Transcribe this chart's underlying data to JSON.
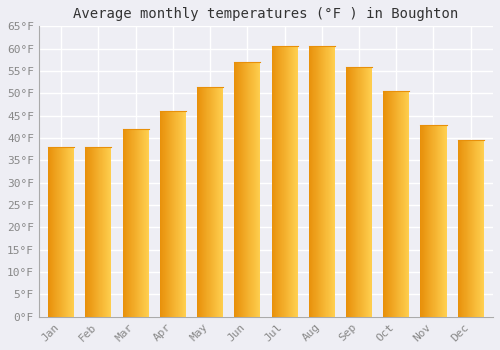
{
  "title": "Average monthly temperatures (°F ) in Boughton",
  "months": [
    "Jan",
    "Feb",
    "Mar",
    "Apr",
    "May",
    "Jun",
    "Jul",
    "Aug",
    "Sep",
    "Oct",
    "Nov",
    "Dec"
  ],
  "values": [
    38,
    38,
    42,
    46,
    51.5,
    57,
    60.5,
    60.5,
    56,
    50.5,
    43,
    39.5
  ],
  "bar_color_left": "#E8900A",
  "bar_color_right": "#FFD050",
  "bar_color_mid": "#FFAB20",
  "ylim": [
    0,
    65
  ],
  "yticks": [
    0,
    5,
    10,
    15,
    20,
    25,
    30,
    35,
    40,
    45,
    50,
    55,
    60,
    65
  ],
  "ytick_labels": [
    "0°F",
    "5°F",
    "10°F",
    "15°F",
    "20°F",
    "25°F",
    "30°F",
    "35°F",
    "40°F",
    "45°F",
    "50°F",
    "55°F",
    "60°F",
    "65°F"
  ],
  "background_color": "#eeeef4",
  "plot_bg_color": "#eeeef4",
  "grid_color": "#ffffff",
  "title_fontsize": 10,
  "tick_fontsize": 8,
  "font_family": "monospace",
  "tick_color": "#888888",
  "spine_color": "#aaaaaa"
}
